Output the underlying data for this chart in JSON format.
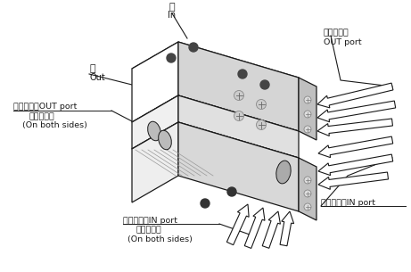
{
  "background_color": "#ffffff",
  "line_color": "#1a1a1a",
  "labels": {
    "jin": "进",
    "in": "In",
    "out_ch": "出",
    "out": "Out",
    "out_port_ch": "伸出接管口",
    "out_port_en": "OUT port",
    "left_out_port": "伸出接管口OUT port",
    "left_out_both_ch": "（在两面）",
    "left_out_both_en": "(On both sides)",
    "bottom_in_port": "缩回接管口IN port",
    "bottom_in_both_ch": "（在两面）",
    "bottom_in_both_en": "(On both sides)",
    "right_in_port": "缩回接管口IN port"
  }
}
